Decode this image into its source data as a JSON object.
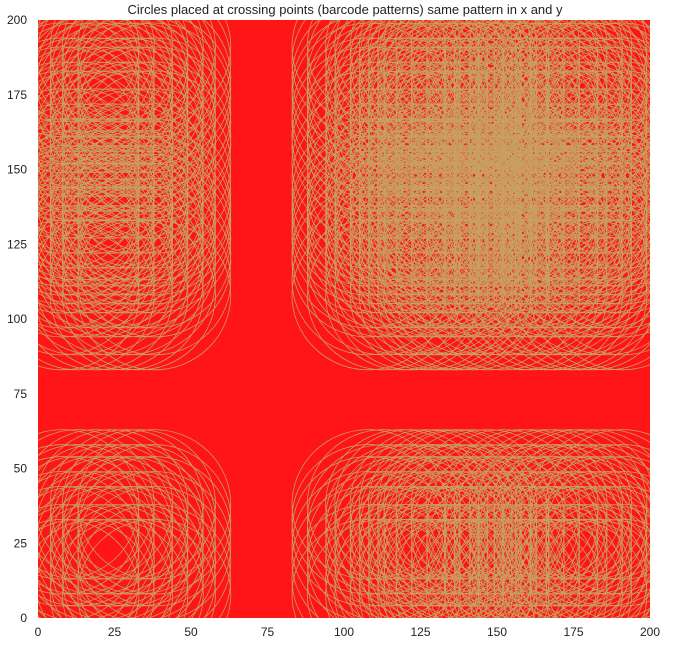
{
  "chart_data": {
    "type": "scatter",
    "title": "Circles placed at crossing points (barcode patterns) same pattern in x and y",
    "xlabel": "",
    "ylabel": "",
    "xlim": [
      0,
      200
    ],
    "ylim": [
      0,
      200
    ],
    "xticks": [
      0,
      25,
      50,
      75,
      100,
      125,
      150,
      175,
      200
    ],
    "yticks": [
      0,
      25,
      50,
      75,
      100,
      125,
      150,
      175,
      200
    ],
    "grid": false,
    "background_color": "#ff1515",
    "circle_color": "#c8a060",
    "circle_radius": 25,
    "barcode_positions": [
      8,
      13,
      19,
      24,
      29,
      33,
      38,
      108,
      113,
      119,
      122,
      127,
      130,
      133,
      136,
      138,
      142,
      147,
      152,
      158,
      161,
      166,
      169,
      174,
      177,
      181,
      186,
      191
    ],
    "note_pattern": "same pattern in x and y"
  }
}
